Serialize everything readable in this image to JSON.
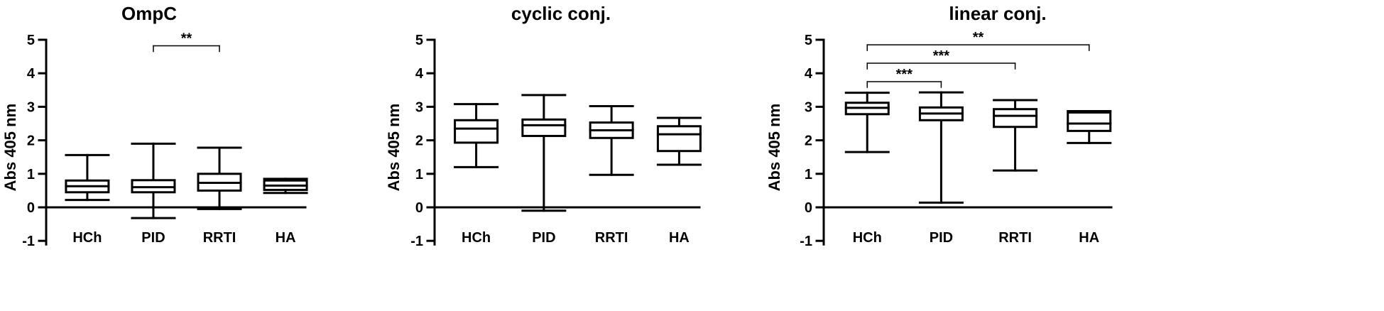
{
  "chart_data": [
    {
      "type": "box",
      "title": "OmpC",
      "ylabel": "Abs 405 nm",
      "ylim": [
        -1,
        5
      ],
      "yticks": [
        "5",
        "4",
        "3",
        "2",
        "1",
        "0",
        "-1"
      ],
      "categories": [
        "HCh",
        "PID",
        "RRTI",
        "HA"
      ],
      "boxes": [
        {
          "min": 0.22,
          "q1": 0.45,
          "median": 0.63,
          "q3": 0.8,
          "max": 1.56
        },
        {
          "min": -0.32,
          "q1": 0.45,
          "median": 0.6,
          "q3": 0.81,
          "max": 1.9
        },
        {
          "min": -0.05,
          "q1": 0.5,
          "median": 0.73,
          "q3": 1.0,
          "max": 1.78
        },
        {
          "min": 0.43,
          "q1": 0.52,
          "median": 0.65,
          "q3": 0.8,
          "max": 0.85
        }
      ],
      "significance": [
        {
          "from": "PID",
          "to": "RRTI",
          "label": "**",
          "y": 4.82
        }
      ]
    },
    {
      "type": "box",
      "title": "cyclic conj.",
      "ylabel": "Abs 405 nm",
      "ylim": [
        -1,
        5
      ],
      "yticks": [
        "5",
        "4",
        "3",
        "2",
        "1",
        "0",
        "-1"
      ],
      "categories": [
        "HCh",
        "PID",
        "RRTI",
        "HA"
      ],
      "boxes": [
        {
          "min": 1.2,
          "q1": 1.93,
          "median": 2.35,
          "q3": 2.6,
          "max": 3.08
        },
        {
          "min": -0.1,
          "q1": 2.13,
          "median": 2.45,
          "q3": 2.62,
          "max": 3.35
        },
        {
          "min": 0.97,
          "q1": 2.07,
          "median": 2.3,
          "q3": 2.53,
          "max": 3.02
        },
        {
          "min": 1.27,
          "q1": 1.68,
          "median": 2.18,
          "q3": 2.42,
          "max": 2.67
        }
      ],
      "significance": []
    },
    {
      "type": "box",
      "title": "linear conj.",
      "ylabel": "Abs 405 nm",
      "ylim": [
        -1,
        5
      ],
      "yticks": [
        "5",
        "4",
        "3",
        "2",
        "1",
        "0",
        "-1"
      ],
      "categories": [
        "HCh",
        "PID",
        "RRTI",
        "HA"
      ],
      "boxes": [
        {
          "min": 1.65,
          "q1": 2.78,
          "median": 2.97,
          "q3": 3.12,
          "max": 3.42
        },
        {
          "min": 0.14,
          "q1": 2.6,
          "median": 2.8,
          "q3": 2.98,
          "max": 3.43
        },
        {
          "min": 1.1,
          "q1": 2.4,
          "median": 2.73,
          "q3": 2.93,
          "max": 3.2
        },
        {
          "min": 1.92,
          "q1": 2.28,
          "median": 2.5,
          "q3": 2.83,
          "max": 2.87
        }
      ],
      "significance": [
        {
          "from": "HCh",
          "to": "PID",
          "label": "***",
          "y": 3.75
        },
        {
          "from": "HCh",
          "to": "RRTI",
          "label": "***",
          "y": 4.3
        },
        {
          "from": "HCh",
          "to": "HA",
          "label": "**",
          "y": 4.85
        }
      ]
    }
  ]
}
